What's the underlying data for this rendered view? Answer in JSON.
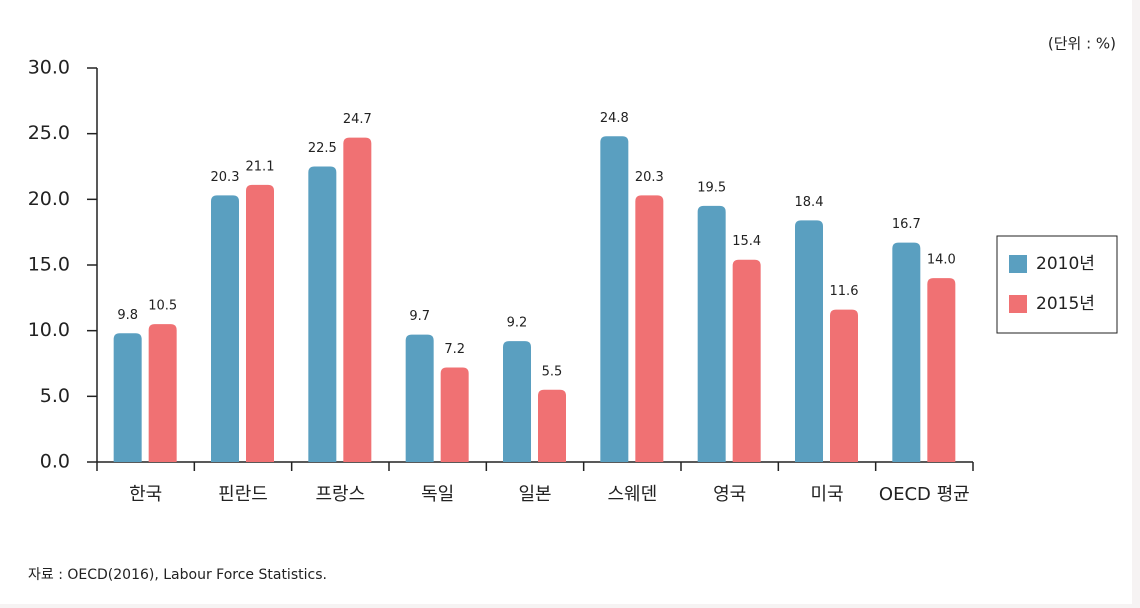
{
  "chart_data": {
    "type": "bar",
    "unit_note": "(단위 : %)",
    "source": "자료 : OECD(2016), Labour Force Statistics.",
    "categories": [
      "한국",
      "핀란드",
      "프랑스",
      "독일",
      "일본",
      "스웨덴",
      "영국",
      "미국",
      "OECD 평균"
    ],
    "series": [
      {
        "name": "2010년",
        "color": "#5a9fc0",
        "values": [
          9.8,
          20.3,
          22.5,
          9.7,
          9.2,
          24.8,
          19.5,
          18.4,
          16.7
        ],
        "value_labels": [
          "9.8",
          "20.3",
          "22.5",
          "9.7",
          "9.2",
          "24.8",
          "19.5",
          "18.4",
          "16.7"
        ]
      },
      {
        "name": "2015년",
        "color": "#f07173",
        "values": [
          10.5,
          21.1,
          24.7,
          7.2,
          5.5,
          20.3,
          15.4,
          11.6,
          14.0
        ],
        "value_labels": [
          "10.5",
          "21.1",
          "24.7",
          "7.2",
          "5.5",
          "20.3",
          "15.4",
          "11.6",
          "14.0"
        ]
      }
    ],
    "ylim": [
      0,
      30
    ],
    "yticks": [
      {
        "value": 0,
        "label": "0.0"
      },
      {
        "value": 5,
        "label": "5.0"
      },
      {
        "value": 10,
        "label": "10.0"
      },
      {
        "value": 15,
        "label": "15.0"
      },
      {
        "value": 20,
        "label": "20.0"
      },
      {
        "value": 25,
        "label": "25.0"
      },
      {
        "value": 30,
        "label": "30.0"
      }
    ],
    "legend": "right"
  }
}
